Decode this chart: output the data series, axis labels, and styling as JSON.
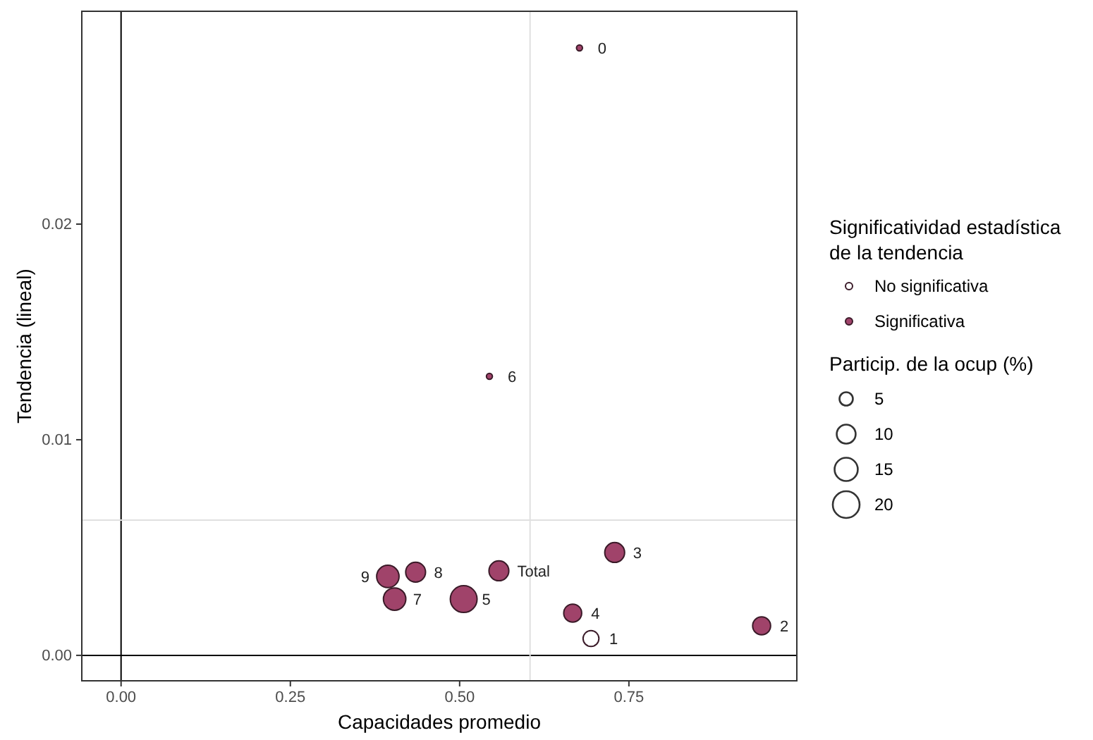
{
  "chart_data": {
    "type": "bubble",
    "xlabel": "Capacidades promedio",
    "ylabel": "Tendencia (lineal)",
    "legend_title": "Significatividad estadística\nde la tendencia",
    "xlim": [
      -0.058,
      0.998
    ],
    "ylim": [
      -0.00118,
      0.02987
    ],
    "xticks": [
      {
        "value": 0,
        "label": "0.00"
      },
      0.25,
      {
        "value": 0.5,
        "label": "0.50"
      },
      0.75
    ],
    "yticks": [
      {
        "value": 0,
        "label": "0.00"
      },
      0.01,
      0.02
    ],
    "grid": false,
    "legend": "right",
    "size_legend": [
      5,
      10,
      15,
      20
    ],
    "series": [
      {
        "name": "No significativa",
        "color": "#ffffff",
        "x": [
          0.694
        ],
        "values": [
          0.00078
        ],
        "sizes": [
          7
        ]
      },
      {
        "name": "Significativa",
        "color": "#a0436a",
        "x": [
          0.677,
          0.946,
          0.729,
          0.667,
          0.506,
          0.544,
          0.404,
          0.435,
          0.394,
          0.558
        ],
        "values": [
          0.02817,
          0.00137,
          0.00477,
          0.00196,
          0.00261,
          0.01294,
          0.00261,
          0.00386,
          0.00366,
          0.00392
        ],
        "sizes": [
          1,
          9,
          11,
          9,
          20,
          1,
          14,
          11,
          14,
          11
        ]
      }
    ],
    "ref_lines": [
      {
        "axis": "x",
        "value": 0,
        "color": "#000000"
      },
      {
        "axis": "y",
        "value": 0,
        "color": "#000000"
      },
      {
        "axis": "x",
        "value": 0.604,
        "color": "#e0e0e0"
      },
      {
        "axis": "y",
        "value": 0.00627,
        "color": "#e0e0e0"
      }
    ],
    "annotations": [
      {
        "text": "0",
        "x": 0.677,
        "y": 0.02817
      },
      {
        "text": "1",
        "x": 0.694,
        "y": 0.00078
      },
      {
        "text": "2",
        "x": 0.946,
        "y": 0.00137
      },
      {
        "text": "3",
        "x": 0.729,
        "y": 0.00477
      },
      {
        "text": "4",
        "x": 0.667,
        "y": 0.00196
      },
      {
        "text": "5",
        "x": 0.506,
        "y": 0.00261
      },
      {
        "text": "6",
        "x": 0.544,
        "y": 0.01294
      },
      {
        "text": "7",
        "x": 0.404,
        "y": 0.00261
      },
      {
        "text": "8",
        "x": 0.435,
        "y": 0.00386
      },
      {
        "text": "9",
        "x": 0.394,
        "y": 0.00366
      },
      {
        "text": "Total",
        "x": 0.558,
        "y": 0.00392
      },
      "Particip. de la ocup (%)"
    ]
  }
}
